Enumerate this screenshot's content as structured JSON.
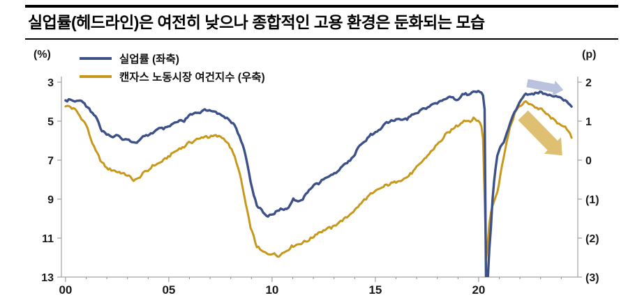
{
  "title": "실업률(헤드라인)은 여전히 낮으나 종합적인 고용 환경은 둔화되는 모습",
  "axis_units": {
    "left": "(%)",
    "right": "(p)"
  },
  "legend": [
    {
      "label": "실업률 (좌축)",
      "color": "#3d5188"
    },
    {
      "label": "캔자스 노동시장 여건지수 (우축)",
      "color": "#c7981b"
    }
  ],
  "colors": {
    "unemployment_line": "#3d5188",
    "lmci_line": "#c7981b",
    "axis": "#8f8f8f",
    "blue_arrow": "#b7bfdc",
    "gold_arrow": "#dcb963"
  },
  "chart_data": {
    "type": "line",
    "title": "실업률(헤드라인)은 여전히 낮으나 종합적인 고용 환경은 둔화되는 모습",
    "grid": false,
    "legend_position": "top-left",
    "x_axis": {
      "range": [
        1999.8,
        2024.8
      ],
      "ticks": [
        2000,
        2005,
        2010,
        2015,
        2020
      ],
      "tick_labels": [
        "00",
        "05",
        "10",
        "15",
        "20"
      ]
    },
    "left_axis": {
      "unit": "(%)",
      "range": [
        3,
        13
      ],
      "inverted": true,
      "ticks": [
        3,
        5,
        7,
        9,
        11,
        13
      ],
      "tick_labels": [
        "3",
        "5",
        "7",
        "9",
        "11",
        "13"
      ]
    },
    "right_axis": {
      "unit": "(p)",
      "range": [
        -3,
        2
      ],
      "ticks": [
        2,
        1,
        0,
        -1,
        -2,
        -3
      ],
      "tick_labels": [
        "2",
        "1",
        "0",
        "(1)",
        "(2)",
        "(3)"
      ]
    },
    "series": [
      {
        "name": "실업률 (좌축)",
        "axis": "left",
        "color": "#3d5188",
        "points": [
          [
            2000,
            4.0
          ],
          [
            2000.25,
            3.9
          ],
          [
            2000.5,
            4.0
          ],
          [
            2000.75,
            3.9
          ],
          [
            2001,
            4.2
          ],
          [
            2001.25,
            4.5
          ],
          [
            2001.5,
            4.8
          ],
          [
            2001.75,
            5.5
          ],
          [
            2002,
            5.7
          ],
          [
            2002.25,
            5.8
          ],
          [
            2002.5,
            5.7
          ],
          [
            2002.75,
            5.9
          ],
          [
            2003,
            5.9
          ],
          [
            2003.25,
            6.1
          ],
          [
            2003.5,
            6.1
          ],
          [
            2003.75,
            5.8
          ],
          [
            2004,
            5.7
          ],
          [
            2004.25,
            5.6
          ],
          [
            2004.5,
            5.4
          ],
          [
            2004.75,
            5.4
          ],
          [
            2005,
            5.3
          ],
          [
            2005.25,
            5.1
          ],
          [
            2005.5,
            5.0
          ],
          [
            2005.75,
            5.0
          ],
          [
            2006,
            4.7
          ],
          [
            2006.25,
            4.6
          ],
          [
            2006.5,
            4.6
          ],
          [
            2006.75,
            4.4
          ],
          [
            2007,
            4.5
          ],
          [
            2007.25,
            4.5
          ],
          [
            2007.5,
            4.7
          ],
          [
            2007.75,
            4.8
          ],
          [
            2008,
            5.0
          ],
          [
            2008.25,
            5.3
          ],
          [
            2008.5,
            6.0
          ],
          [
            2008.75,
            6.9
          ],
          [
            2009,
            8.3
          ],
          [
            2009.25,
            9.3
          ],
          [
            2009.5,
            9.6
          ],
          [
            2009.75,
            9.9
          ],
          [
            2010,
            9.8
          ],
          [
            2010.25,
            9.6
          ],
          [
            2010.5,
            9.5
          ],
          [
            2010.75,
            9.5
          ],
          [
            2011,
            9.0
          ],
          [
            2011.25,
            9.1
          ],
          [
            2011.5,
            9.0
          ],
          [
            2011.75,
            8.6
          ],
          [
            2012,
            8.3
          ],
          [
            2012.25,
            8.2
          ],
          [
            2012.5,
            8.0
          ],
          [
            2012.75,
            7.8
          ],
          [
            2013,
            7.7
          ],
          [
            2013.25,
            7.5
          ],
          [
            2013.5,
            7.2
          ],
          [
            2013.75,
            7.0
          ],
          [
            2014,
            6.7
          ],
          [
            2014.25,
            6.2
          ],
          [
            2014.5,
            6.1
          ],
          [
            2014.75,
            5.7
          ],
          [
            2015,
            5.6
          ],
          [
            2015.25,
            5.4
          ],
          [
            2015.5,
            5.1
          ],
          [
            2015.75,
            5.0
          ],
          [
            2016,
            4.9
          ],
          [
            2016.25,
            4.9
          ],
          [
            2016.5,
            4.9
          ],
          [
            2016.75,
            4.7
          ],
          [
            2017,
            4.6
          ],
          [
            2017.25,
            4.4
          ],
          [
            2017.5,
            4.3
          ],
          [
            2017.75,
            4.1
          ],
          [
            2018,
            4.1
          ],
          [
            2018.25,
            3.9
          ],
          [
            2018.5,
            3.8
          ],
          [
            2018.75,
            3.8
          ],
          [
            2019,
            3.9
          ],
          [
            2019.25,
            3.6
          ],
          [
            2019.5,
            3.6
          ],
          [
            2019.75,
            3.5
          ],
          [
            2020,
            3.5
          ],
          [
            2020.2,
            3.5
          ],
          [
            2020.29,
            4.4
          ],
          [
            2020.37,
            14.7
          ],
          [
            2020.45,
            13.0
          ],
          [
            2020.54,
            11.1
          ],
          [
            2020.62,
            10.2
          ],
          [
            2020.7,
            8.4
          ],
          [
            2020.79,
            7.8
          ],
          [
            2020.87,
            6.9
          ],
          [
            2020.95,
            6.7
          ],
          [
            2021,
            6.4
          ],
          [
            2021.25,
            6.0
          ],
          [
            2021.5,
            5.2
          ],
          [
            2021.75,
            4.5
          ],
          [
            2022,
            4.0
          ],
          [
            2022.25,
            3.6
          ],
          [
            2022.5,
            3.6
          ],
          [
            2022.75,
            3.6
          ],
          [
            2023,
            3.5
          ],
          [
            2023.25,
            3.6
          ],
          [
            2023.5,
            3.7
          ],
          [
            2023.75,
            3.7
          ],
          [
            2024,
            3.8
          ],
          [
            2024.25,
            4.0
          ],
          [
            2024.5,
            4.2
          ]
        ]
      },
      {
        "name": "캔자스 노동시장 여건지수 (우축)",
        "axis": "right",
        "color": "#c7981b",
        "points": [
          [
            2000,
            1.4
          ],
          [
            2000.25,
            1.35
          ],
          [
            2000.5,
            1.3
          ],
          [
            2000.75,
            1.1
          ],
          [
            2001,
            0.9
          ],
          [
            2001.25,
            0.5
          ],
          [
            2001.5,
            0.2
          ],
          [
            2001.75,
            -0.05
          ],
          [
            2002,
            -0.2
          ],
          [
            2002.25,
            -0.25
          ],
          [
            2002.5,
            -0.3
          ],
          [
            2002.75,
            -0.35
          ],
          [
            2003,
            -0.4
          ],
          [
            2003.25,
            -0.5
          ],
          [
            2003.5,
            -0.5
          ],
          [
            2003.75,
            -0.35
          ],
          [
            2004,
            -0.25
          ],
          [
            2004.25,
            -0.15
          ],
          [
            2004.5,
            -0.1
          ],
          [
            2004.75,
            0.0
          ],
          [
            2005,
            0.1
          ],
          [
            2005.25,
            0.2
          ],
          [
            2005.5,
            0.3
          ],
          [
            2005.75,
            0.35
          ],
          [
            2006,
            0.45
          ],
          [
            2006.25,
            0.5
          ],
          [
            2006.5,
            0.55
          ],
          [
            2006.75,
            0.6
          ],
          [
            2007,
            0.6
          ],
          [
            2007.25,
            0.62
          ],
          [
            2007.5,
            0.6
          ],
          [
            2007.75,
            0.5
          ],
          [
            2008,
            0.3
          ],
          [
            2008.25,
            0.0
          ],
          [
            2008.5,
            -0.5
          ],
          [
            2008.75,
            -1.2
          ],
          [
            2009,
            -1.8
          ],
          [
            2009.25,
            -2.2
          ],
          [
            2009.5,
            -2.35
          ],
          [
            2009.75,
            -2.4
          ],
          [
            2010,
            -2.4
          ],
          [
            2010.25,
            -2.45
          ],
          [
            2010.5,
            -2.4
          ],
          [
            2010.75,
            -2.3
          ],
          [
            2011,
            -2.2
          ],
          [
            2011.25,
            -2.15
          ],
          [
            2011.5,
            -2.1
          ],
          [
            2011.75,
            -2.05
          ],
          [
            2012,
            -1.95
          ],
          [
            2012.25,
            -1.85
          ],
          [
            2012.5,
            -1.8
          ],
          [
            2012.75,
            -1.75
          ],
          [
            2013,
            -1.7
          ],
          [
            2013.25,
            -1.6
          ],
          [
            2013.5,
            -1.5
          ],
          [
            2013.75,
            -1.4
          ],
          [
            2014,
            -1.3
          ],
          [
            2014.25,
            -1.15
          ],
          [
            2014.5,
            -1.0
          ],
          [
            2014.75,
            -0.9
          ],
          [
            2015,
            -0.8
          ],
          [
            2015.25,
            -0.72
          ],
          [
            2015.5,
            -0.65
          ],
          [
            2015.75,
            -0.6
          ],
          [
            2016,
            -0.55
          ],
          [
            2016.25,
            -0.5
          ],
          [
            2016.5,
            -0.45
          ],
          [
            2016.75,
            -0.35
          ],
          [
            2017,
            -0.2
          ],
          [
            2017.25,
            -0.05
          ],
          [
            2017.5,
            0.1
          ],
          [
            2017.75,
            0.25
          ],
          [
            2018,
            0.4
          ],
          [
            2018.25,
            0.55
          ],
          [
            2018.5,
            0.7
          ],
          [
            2018.75,
            0.8
          ],
          [
            2019,
            0.9
          ],
          [
            2019.25,
            1.0
          ],
          [
            2019.5,
            1.0
          ],
          [
            2019.75,
            1.05
          ],
          [
            2020,
            1.0
          ],
          [
            2020.2,
            0.8
          ],
          [
            2020.37,
            -2.6
          ],
          [
            2020.5,
            -1.7
          ],
          [
            2020.62,
            -1.25
          ],
          [
            2020.79,
            -0.95
          ],
          [
            2020.95,
            -0.75
          ],
          [
            2021,
            -0.55
          ],
          [
            2021.25,
            0.2
          ],
          [
            2021.5,
            0.8
          ],
          [
            2021.75,
            1.2
          ],
          [
            2022,
            1.4
          ],
          [
            2022.25,
            1.5
          ],
          [
            2022.5,
            1.45
          ],
          [
            2022.75,
            1.35
          ],
          [
            2023,
            1.3
          ],
          [
            2023.25,
            1.2
          ],
          [
            2023.5,
            1.1
          ],
          [
            2023.75,
            1.0
          ],
          [
            2024,
            0.9
          ],
          [
            2024.25,
            0.8
          ],
          [
            2024.5,
            0.6
          ]
        ]
      }
    ],
    "annotations": [
      {
        "name": "unemployment-trend-arrow",
        "axis": "left",
        "from": [
          2022.35,
          3.05
        ],
        "to": [
          2024.1,
          3.4
        ],
        "shaft": 6,
        "head_w": 11,
        "head_l": 14,
        "color": "#b7bfdc",
        "opacity": 0.95
      },
      {
        "name": "lmci-trend-arrow",
        "axis": "right",
        "from": [
          2022.15,
          1.15
        ],
        "to": [
          2024.05,
          0.12
        ],
        "shaft": 10,
        "head_w": 17,
        "head_l": 20,
        "color": "#dcb963",
        "opacity": 0.9
      }
    ]
  }
}
